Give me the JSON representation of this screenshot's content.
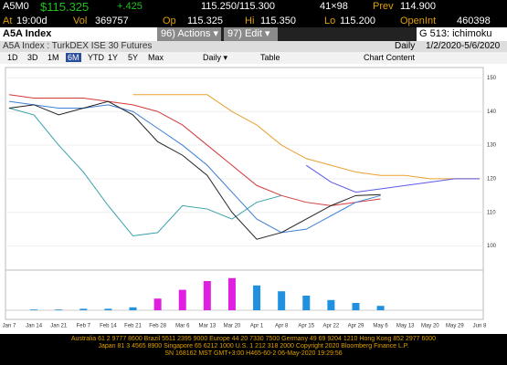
{
  "header": {
    "ticker": "A5M0",
    "price": "$115.325",
    "change": "+.425",
    "bidask": "115.250/115.300",
    "size": "41×98",
    "prev_label": "Prev",
    "prev": "114.900",
    "at_label": "At",
    "time": "19:00d",
    "vol_label": "Vol",
    "vol": "369757",
    "op_label": "Op",
    "op": "115.325",
    "hi_label": "Hi",
    "hi": "115.350",
    "lo_label": "Lo",
    "lo": "115.200",
    "oi_label": "OpenInt",
    "oi": "460398"
  },
  "menu": {
    "security": "A5A Index",
    "actions": "96) Actions ▾",
    "edit": "97) Edit ▾",
    "function": "G 513: ichimoku"
  },
  "subtitle": {
    "name": "A5A Index : TurkDEX ISE 30 Futures",
    "period": "Daily",
    "range": "1/2/2020-5/6/2020"
  },
  "toolbar": {
    "ranges": [
      "1D",
      "3D",
      "1M",
      "6M",
      "YTD",
      "1Y",
      "5Y",
      "Max"
    ],
    "frequency": "Daily ▾",
    "table": "Table",
    "content": "Chart Content"
  },
  "chart_data": [
    {
      "type": "line",
      "categories": [
        "Jan 7",
        "Jan 14",
        "Jan 21",
        "Feb 7",
        "Feb 14",
        "Feb 21",
        "Feb 28",
        "Mar 6",
        "Mar 13",
        "Mar 20",
        "Apr 1",
        "Apr 8",
        "Apr 15",
        "Apr 22",
        "Apr 29",
        "May 6",
        "May 13",
        "May 20",
        "May 29",
        "Jun 8"
      ],
      "ylim": [
        95,
        152
      ],
      "yticks": [
        100,
        110,
        120,
        130,
        140,
        150
      ],
      "series": [
        {
          "color": "#e8a030",
          "values": [
            null,
            null,
            null,
            null,
            null,
            145,
            145,
            145,
            145,
            140,
            136,
            130,
            126,
            124,
            122,
            121,
            121,
            120,
            120,
            120
          ]
        },
        {
          "color": "#5a5ae6",
          "values": [
            null,
            null,
            null,
            null,
            null,
            null,
            null,
            null,
            null,
            null,
            null,
            null,
            124,
            119,
            116,
            117,
            118,
            119,
            120,
            120
          ]
        },
        {
          "color": "#37a0a8",
          "values": [
            141,
            139,
            130,
            122,
            112,
            103,
            104,
            112,
            111,
            108,
            113,
            115,
            null,
            null,
            null,
            null,
            null,
            null,
            null,
            null
          ]
        },
        {
          "color": "#d23a3a",
          "values": [
            145,
            144,
            144,
            144,
            143,
            142,
            140,
            136,
            130,
            124,
            118,
            115,
            113,
            112,
            113,
            114,
            null,
            null,
            null,
            null
          ]
        },
        {
          "color": "#3d7fd8",
          "values": [
            143,
            142,
            141,
            141,
            142,
            140,
            135,
            130,
            124,
            116,
            108,
            104,
            105,
            109,
            113,
            115,
            null,
            null,
            null,
            null
          ]
        },
        {
          "color": "#222222",
          "values": [
            141,
            142,
            139,
            141,
            143,
            139,
            131,
            127,
            121,
            110,
            102,
            104,
            108,
            112,
            115,
            115.3,
            null,
            null,
            null,
            null
          ]
        }
      ]
    },
    {
      "type": "bar",
      "ylim": [
        -5,
        25
      ],
      "series": [
        {
          "color": "#e020e0",
          "values": [
            null,
            null,
            null,
            null,
            null,
            null,
            8,
            14,
            20,
            22,
            null,
            null,
            null,
            null,
            null,
            null,
            null,
            null,
            null,
            null
          ]
        },
        {
          "color": "#2090e0",
          "values": [
            0,
            0.5,
            0.5,
            1,
            1,
            2,
            null,
            null,
            null,
            null,
            17,
            13,
            10,
            7,
            5,
            3,
            null,
            null,
            null,
            null
          ]
        }
      ]
    }
  ],
  "footer": {
    "lines": [
      "Australia 61 2 9777 8600 Brazil 5511 2395 9000 Europe 44 20 7330 7500 Germany 49 69 9204 1210 Hong Kong 852 2977 6000",
      "Japan 81 3 4565 8900 Singapore 65 6212 1000 U.S. 1 212 318 2000 Copyright 2020 Bloomberg Finance L.P.",
      "SN 168162 MST GMT+3:00 H465-60-2 06-May-2020 19:29:56"
    ]
  }
}
